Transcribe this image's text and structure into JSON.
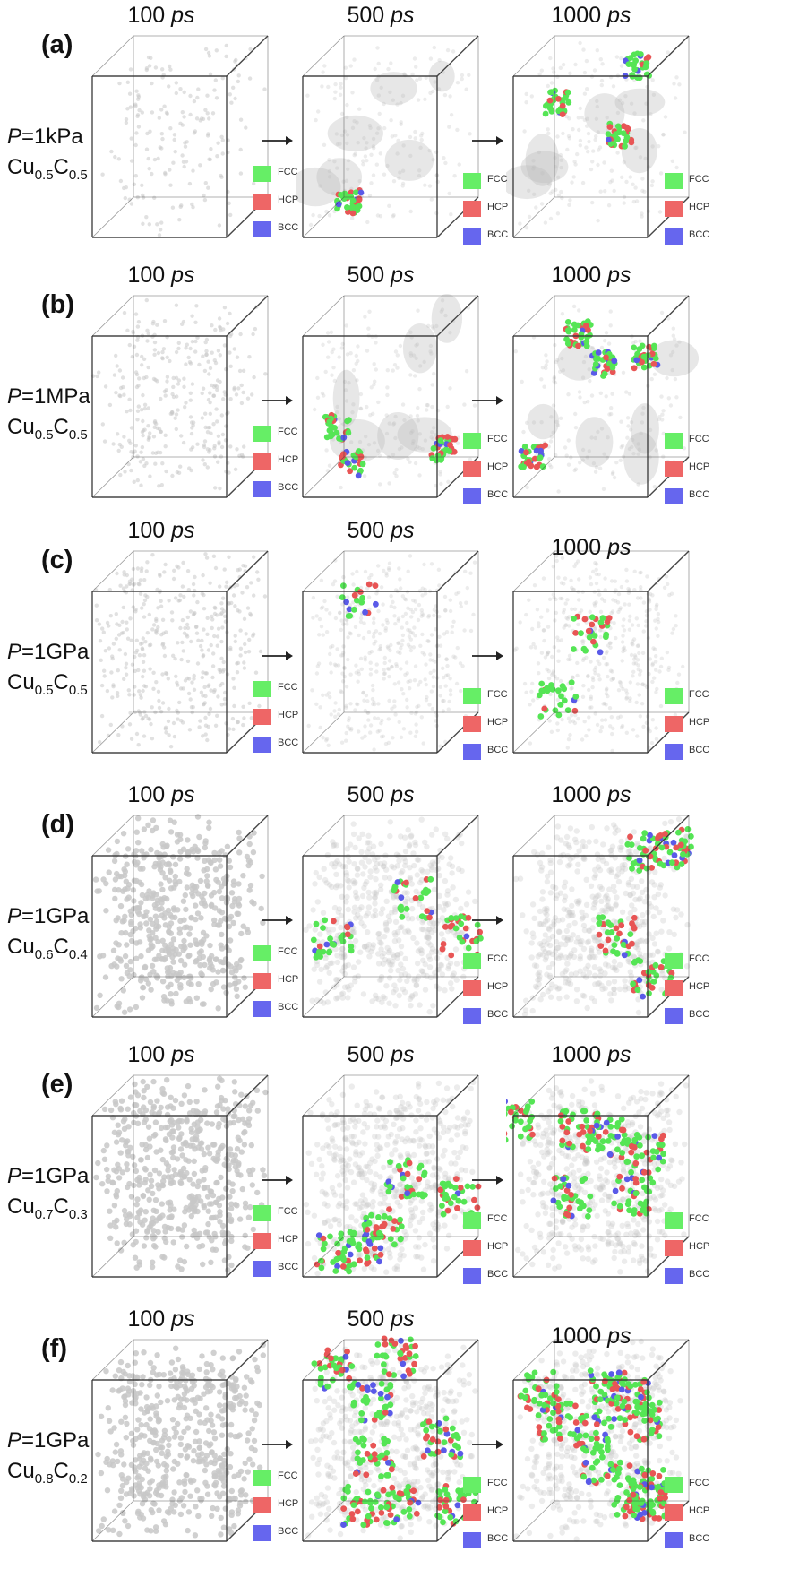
{
  "legend": [
    {
      "label": "FCC",
      "color": "#66ee66"
    },
    {
      "label": "HCP",
      "color": "#ee6666"
    },
    {
      "label": "BCC",
      "color": "#6666ee"
    }
  ],
  "colors": {
    "fcc": "#55e555",
    "hcp": "#e85555",
    "bcc": "#5a5ae8",
    "atom": "#c8c8c8",
    "edge": "#333333"
  },
  "times": [
    {
      "value": "100",
      "unit": "ps"
    },
    {
      "value": "500",
      "unit": "ps"
    },
    {
      "value": "1000",
      "unit": "ps"
    }
  ],
  "panels": [
    {
      "tag": "(a)",
      "p_label": "P",
      "p_value": "=1kPa",
      "cu": "Cu",
      "cu_sub": "0.5",
      "c": "C",
      "c_sub": "0.5"
    },
    {
      "tag": "(b)",
      "p_label": "P",
      "p_value": "=1MPa",
      "cu": "Cu",
      "cu_sub": "0.5",
      "c": "C",
      "c_sub": "0.5"
    },
    {
      "tag": "(c)",
      "p_label": "P",
      "p_value": "=1GPa",
      "cu": "Cu",
      "cu_sub": "0.5",
      "c": "C",
      "c_sub": "0.5"
    },
    {
      "tag": "(d)",
      "p_label": "P",
      "p_value": "=1GPa",
      "cu": "Cu",
      "cu_sub": "0.6",
      "c": "C",
      "c_sub": "0.4"
    },
    {
      "tag": "(e)",
      "p_label": "P",
      "p_value": "=1GPa",
      "cu": "Cu",
      "cu_sub": "0.7",
      "c": "C",
      "c_sub": "0.3"
    },
    {
      "tag": "(f)",
      "p_label": "P",
      "p_value": "=1GPa",
      "cu": "Cu",
      "cu_sub": "0.8",
      "c": "C",
      "c_sub": "0.2"
    }
  ]
}
